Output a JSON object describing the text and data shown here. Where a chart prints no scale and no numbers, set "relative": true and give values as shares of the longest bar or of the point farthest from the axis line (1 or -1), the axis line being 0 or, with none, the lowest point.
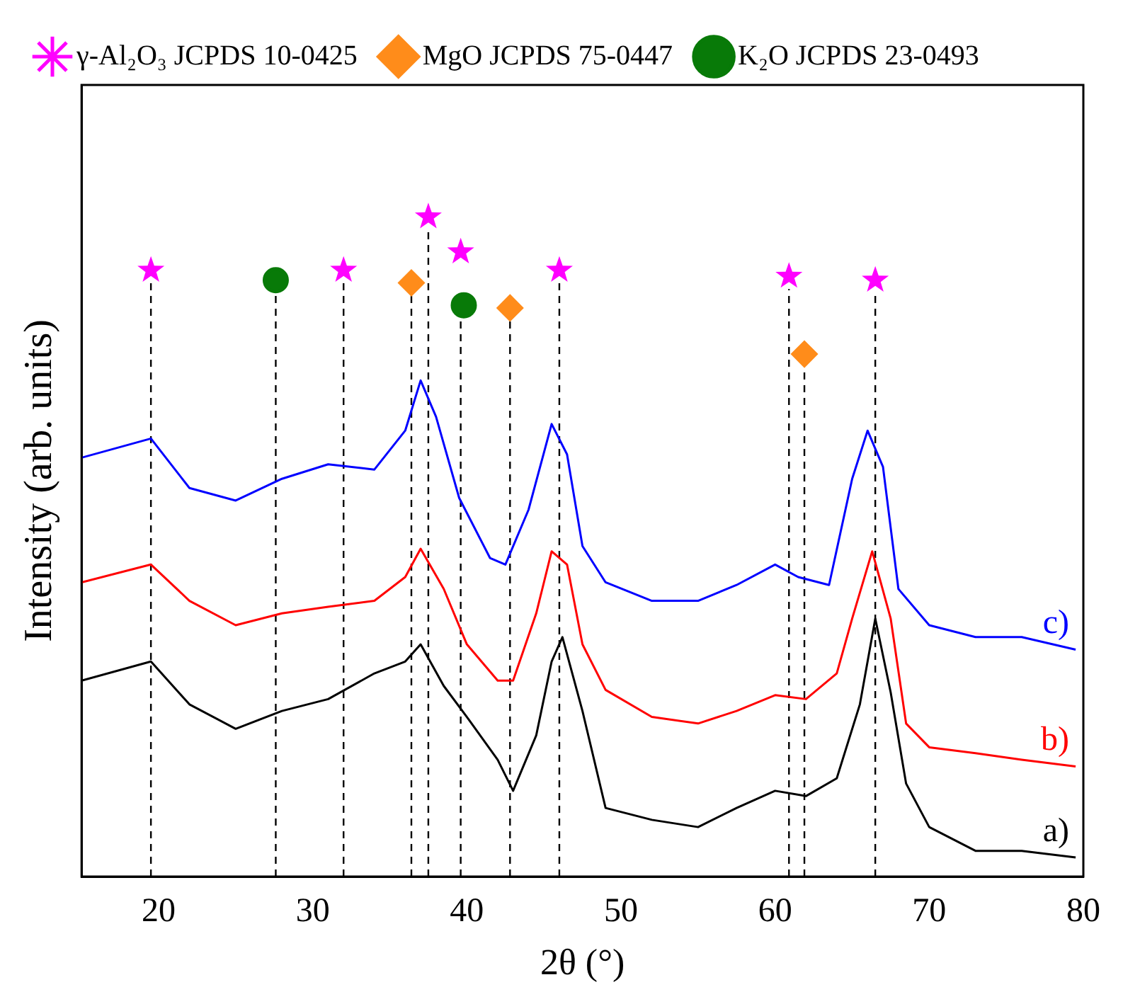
{
  "chart_data": {
    "type": "line",
    "relative": true,
    "xlabel": "2θ (°)",
    "ylabel": "Intensity (arb. units)",
    "xlim": [
      15,
      80
    ],
    "xticks": [
      20,
      30,
      40,
      50,
      60,
      70,
      80
    ],
    "tick_labels": "x",
    "grid": false,
    "legend": "top left",
    "line_style": "solid",
    "series": [
      {
        "name": "a)",
        "color": "#000000",
        "marker": "none",
        "x": [
          15,
          19.5,
          22,
          25,
          28,
          31,
          34,
          36,
          37,
          38.5,
          40,
          42,
          43,
          44.5,
          45.5,
          46.2,
          47.5,
          49,
          52,
          55,
          57.5,
          60,
          62,
          64,
          65.5,
          66.5,
          67.5,
          68.5,
          70,
          73,
          76,
          79.5
        ],
        "values": [
          0.297,
          0.326,
          0.261,
          0.224,
          0.251,
          0.269,
          0.308,
          0.326,
          0.352,
          0.289,
          0.242,
          0.177,
          0.13,
          0.214,
          0.326,
          0.363,
          0.251,
          0.104,
          0.086,
          0.075,
          0.104,
          0.13,
          0.122,
          0.149,
          0.261,
          0.391,
          0.279,
          0.141,
          0.075,
          0.039,
          0.039,
          0.029
        ]
      },
      {
        "name": "b)",
        "color": "#ff0000",
        "marker": "none",
        "x": [
          15,
          19.5,
          22,
          25,
          28,
          31,
          34,
          36,
          37,
          38.5,
          40,
          42,
          43,
          44.5,
          45.5,
          46.5,
          47.5,
          49,
          52,
          55,
          57.5,
          60,
          62,
          64,
          65,
          66.3,
          67.5,
          68.5,
          70,
          73,
          76,
          79.5
        ],
        "values": [
          0.446,
          0.473,
          0.418,
          0.381,
          0.399,
          0.409,
          0.418,
          0.454,
          0.497,
          0.436,
          0.352,
          0.297,
          0.297,
          0.399,
          0.493,
          0.473,
          0.352,
          0.283,
          0.242,
          0.232,
          0.251,
          0.275,
          0.269,
          0.308,
          0.391,
          0.493,
          0.391,
          0.232,
          0.196,
          0.187,
          0.177,
          0.167
        ]
      },
      {
        "name": "c)",
        "color": "#0000ff",
        "marker": "none",
        "x": [
          15,
          19.5,
          22,
          25,
          28,
          31,
          34,
          36,
          37,
          38,
          39.5,
          41.5,
          42.5,
          44,
          45.5,
          46.5,
          47.5,
          49,
          52,
          55,
          57.5,
          60,
          61.5,
          63.5,
          65,
          66,
          67,
          68,
          70,
          73,
          76,
          79.5
        ],
        "values": [
          0.635,
          0.664,
          0.589,
          0.57,
          0.603,
          0.625,
          0.617,
          0.676,
          0.752,
          0.697,
          0.574,
          0.483,
          0.473,
          0.556,
          0.686,
          0.64,
          0.501,
          0.446,
          0.418,
          0.418,
          0.442,
          0.473,
          0.454,
          0.442,
          0.603,
          0.676,
          0.621,
          0.436,
          0.381,
          0.363,
          0.363,
          0.344
        ]
      },
      {
        "type": "scatter",
        "name": "γ-Al₂O₃ JCPDS 10-0425",
        "color": "#ff00ff",
        "marker": "star",
        "x": [
          19.5,
          32.0,
          37.5,
          39.6,
          46.0,
          60.9,
          66.5
        ],
        "values": [
          0.919,
          0.919,
          1.0,
          0.947,
          0.919,
          0.91,
          0.904
        ]
      },
      {
        "type": "scatter",
        "name": "MgO JCPDS 75-0447",
        "color": "#ff8c1a",
        "marker": "diamond",
        "x": [
          36.4,
          42.8,
          61.9
        ],
        "values": [
          0.9,
          0.862,
          0.792
        ]
      },
      {
        "type": "scatter",
        "name": "K₂O JCPDS 23-0493",
        "color": "#087a08",
        "marker": "circle",
        "x": [
          27.6,
          39.8
        ],
        "values": [
          0.904,
          0.866
        ]
      }
    ],
    "ref_lines": [
      {
        "axis": "x",
        "value": 19.5,
        "color": "#000000",
        "line_style": "dashed"
      },
      {
        "axis": "x",
        "value": 27.6,
        "color": "#000000",
        "line_style": "dashed"
      },
      {
        "axis": "x",
        "value": 32.0,
        "color": "#000000",
        "line_style": "dashed"
      },
      {
        "axis": "x",
        "value": 36.4,
        "color": "#000000",
        "line_style": "dashed"
      },
      {
        "axis": "x",
        "value": 37.5,
        "color": "#000000",
        "line_style": "dashed"
      },
      {
        "axis": "x",
        "value": 39.6,
        "color": "#000000",
        "line_style": "dashed"
      },
      {
        "axis": "x",
        "value": 42.8,
        "color": "#000000",
        "line_style": "dashed"
      },
      {
        "axis": "x",
        "value": 46.0,
        "color": "#000000",
        "line_style": "dashed"
      },
      {
        "axis": "x",
        "value": 60.9,
        "color": "#000000",
        "line_style": "dashed"
      },
      {
        "axis": "x",
        "value": 61.9,
        "color": "#000000",
        "line_style": "dashed"
      },
      {
        "axis": "x",
        "value": 66.5,
        "color": "#000000",
        "line_style": "dashed"
      }
    ]
  }
}
